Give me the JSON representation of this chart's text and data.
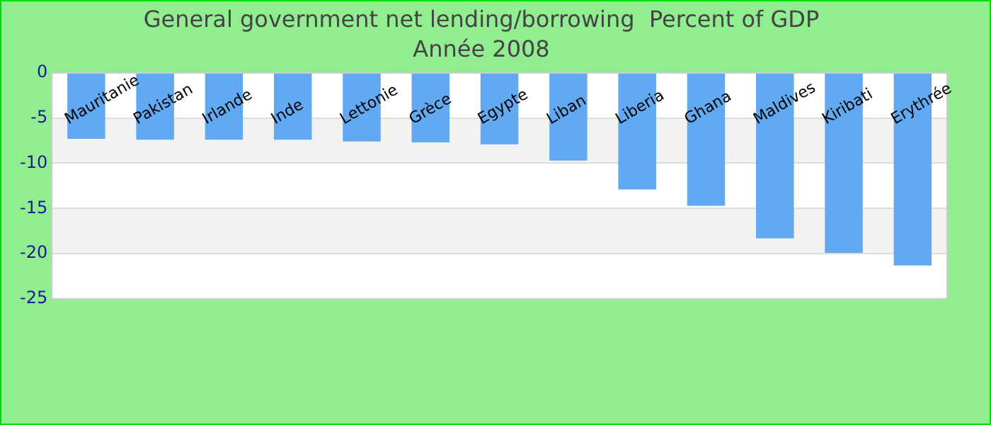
{
  "chart_data": {
    "type": "bar",
    "title": "General government net lending/borrowing  Percent of GDP",
    "subtitle": "Année 2008",
    "categories": [
      "Mauritanie",
      "Pakistan",
      "Irlande",
      "Inde",
      "Lettonie",
      "Grèce",
      "Egypte",
      "Liban",
      "Liberia",
      "Ghana",
      "Maldives",
      "Kiribati",
      "Erythrée"
    ],
    "values": [
      -7.3,
      -7.4,
      -7.4,
      -7.4,
      -7.6,
      -7.7,
      -7.9,
      -9.7,
      -12.9,
      -14.7,
      -18.3,
      -19.9,
      -21.3
    ],
    "color": "#62a9f4",
    "ylim": [
      -25,
      0
    ],
    "yticks": [
      -25,
      -20,
      -15,
      -10,
      -5,
      0
    ],
    "grid": true,
    "legend": false
  }
}
